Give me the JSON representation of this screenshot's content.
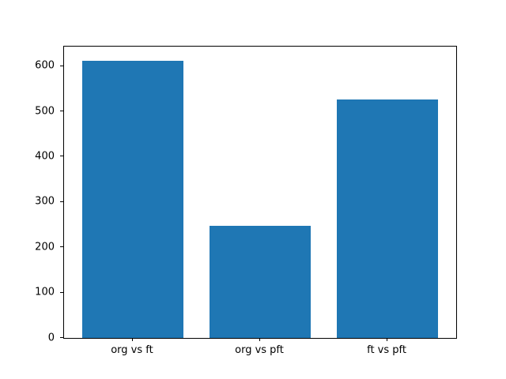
{
  "chart_data": {
    "type": "bar",
    "title": "",
    "xlabel": "",
    "ylabel": "",
    "categories": [
      "org vs ft",
      "org vs pft",
      "ft vs pft"
    ],
    "values": [
      612,
      247,
      527
    ],
    "ylim": [
      0,
      643
    ],
    "yticks": [
      0,
      100,
      200,
      300,
      400,
      500,
      600
    ],
    "bar_color": "#1f77b4",
    "background_color": "#ffffff",
    "grid": false,
    "legend": "none",
    "bar_width_data_units": 0.8
  }
}
